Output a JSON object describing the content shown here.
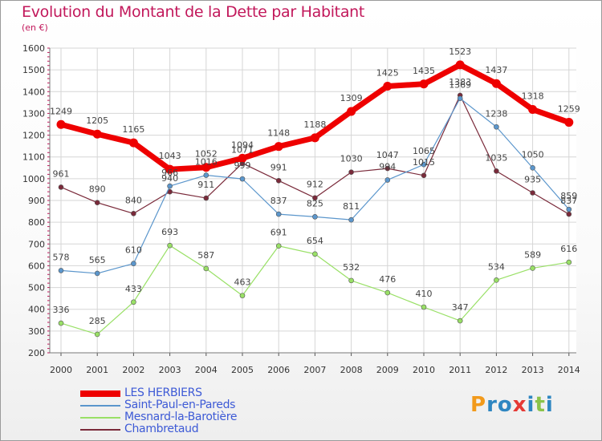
{
  "chart_data": {
    "type": "line",
    "title": "Evolution du Montant de la Dette par Habitant",
    "unit": "(en €)",
    "x": [
      "2000",
      "2001",
      "2002",
      "2003",
      "2004",
      "2005",
      "2006",
      "2007",
      "2008",
      "2009",
      "2010",
      "2011",
      "2012",
      "2013",
      "2014"
    ],
    "ylim": [
      200,
      1600
    ],
    "yticks": [
      200,
      300,
      400,
      500,
      600,
      700,
      800,
      900,
      1000,
      1100,
      1200,
      1300,
      1400,
      1500,
      1600
    ],
    "grid": true,
    "legend_position": "bottom-left",
    "series": [
      {
        "name": "LES HERBIERS",
        "color": "#ee0000",
        "values": [
          1249,
          1205,
          1165,
          1043,
          1052,
          1094,
          1148,
          1188,
          1309,
          1425,
          1435,
          1523,
          1437,
          1318,
          1259
        ]
      },
      {
        "name": "Saint-Paul-en-Pareds",
        "color": "#5b96cc",
        "values": [
          578,
          565,
          610,
          966,
          1016,
          999,
          837,
          825,
          811,
          994,
          1065,
          1369,
          1238,
          1050,
          859
        ]
      },
      {
        "name": "Mesnard-la-Barotière",
        "color": "#99e066",
        "values": [
          336,
          285,
          433,
          693,
          587,
          463,
          691,
          654,
          532,
          476,
          410,
          347,
          534,
          589,
          616
        ]
      },
      {
        "name": "Chambretaud",
        "color": "#7a2a3a",
        "values": [
          961,
          890,
          840,
          940,
          911,
          1071,
          991,
          912,
          1030,
          1047,
          1015,
          1383,
          1035,
          935,
          837
        ]
      }
    ]
  },
  "logo": {
    "text": "Proxiti",
    "letters": [
      "P",
      "r",
      "o",
      "x",
      "i",
      "t",
      "i"
    ],
    "colors": [
      "#f29a1b",
      "#2e86c1",
      "#2e86c1",
      "#e53935",
      "#2e86c1",
      "#8bc34a",
      "#2e86c1"
    ]
  }
}
